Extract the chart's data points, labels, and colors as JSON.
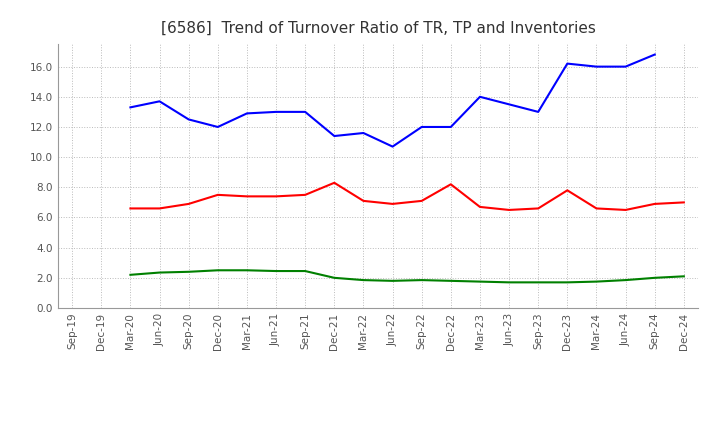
{
  "title": "[6586]  Trend of Turnover Ratio of TR, TP and Inventories",
  "x_labels": [
    "Sep-19",
    "Dec-19",
    "Mar-20",
    "Jun-20",
    "Sep-20",
    "Dec-20",
    "Mar-21",
    "Jun-21",
    "Sep-21",
    "Dec-21",
    "Mar-22",
    "Jun-22",
    "Sep-22",
    "Dec-22",
    "Mar-23",
    "Jun-23",
    "Sep-23",
    "Dec-23",
    "Mar-24",
    "Jun-24",
    "Sep-24",
    "Dec-24"
  ],
  "trade_receivables": [
    null,
    null,
    6.6,
    6.6,
    6.9,
    7.5,
    7.4,
    7.4,
    7.5,
    8.3,
    7.1,
    6.9,
    7.1,
    8.2,
    6.7,
    6.5,
    6.6,
    7.8,
    6.6,
    6.5,
    6.9,
    7.0
  ],
  "trade_payables": [
    null,
    null,
    13.3,
    13.7,
    12.5,
    12.0,
    12.9,
    13.0,
    13.0,
    11.4,
    11.6,
    10.7,
    12.0,
    12.0,
    14.0,
    13.5,
    13.0,
    16.2,
    16.0,
    16.0,
    16.8,
    null
  ],
  "inventories": [
    null,
    null,
    2.2,
    2.35,
    2.4,
    2.5,
    2.5,
    2.45,
    2.45,
    2.0,
    1.85,
    1.8,
    1.85,
    1.8,
    1.75,
    1.7,
    1.7,
    1.7,
    1.75,
    1.85,
    2.0,
    2.1
  ],
  "ylim": [
    0.0,
    17.5
  ],
  "yticks": [
    0.0,
    2.0,
    4.0,
    6.0,
    8.0,
    10.0,
    12.0,
    14.0,
    16.0
  ],
  "tr_color": "#ff0000",
  "tp_color": "#0000ff",
  "inv_color": "#008000",
  "background_color": "#ffffff",
  "grid_color": "#bbbbbb",
  "title_fontsize": 11,
  "title_color": "#333333",
  "tick_fontsize": 7.5,
  "legend_fontsize": 8.5
}
